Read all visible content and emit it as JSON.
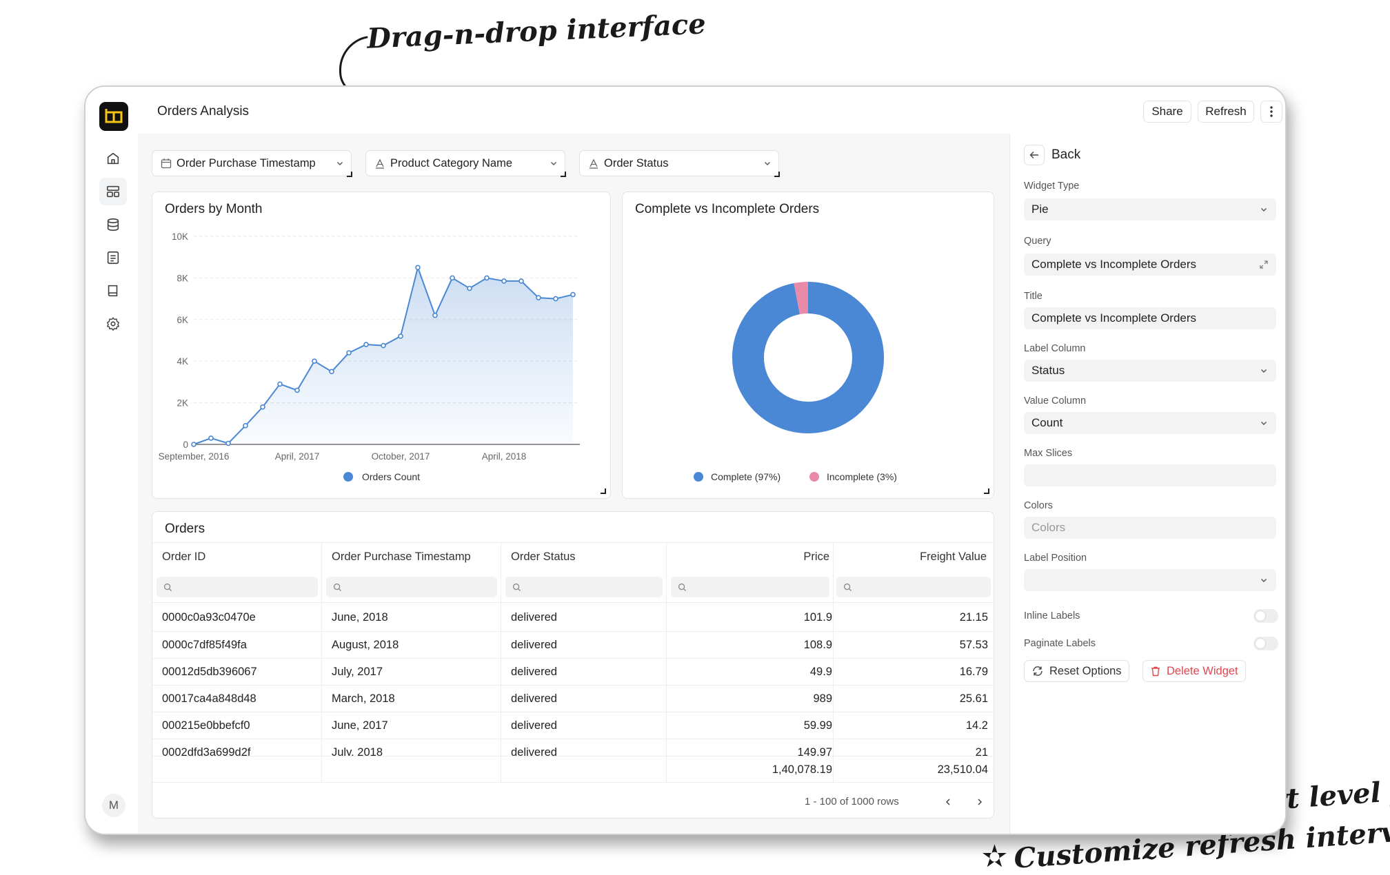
{
  "annotations": {
    "top": "Drag-n-drop interface",
    "bottom1": "Dashboard / Chart level filters",
    "bottom2": "Customize refresh interval"
  },
  "app": {
    "title": "Orders Analysis",
    "user_initial": "M",
    "actions": {
      "share": "Share",
      "refresh": "Refresh"
    }
  },
  "filters": [
    {
      "label": "Order Purchase Timestamp",
      "icon": "calendar-icon"
    },
    {
      "label": "Product Category Name",
      "icon": "text-type-icon"
    },
    {
      "label": "Order Status",
      "icon": "text-type-icon"
    }
  ],
  "line_chart": {
    "title": "Orders by Month",
    "chart_data": {
      "type": "area",
      "title": "Orders by Month",
      "x_tick_labels": [
        "September, 2016",
        "April, 2017",
        "October, 2017",
        "April, 2018"
      ],
      "y_tick_labels": [
        "0",
        "2K",
        "4K",
        "6K",
        "8K",
        "10K"
      ],
      "ylim": [
        0,
        10000
      ],
      "series": [
        {
          "name": "Orders Count",
          "values": [
            0,
            300,
            50,
            900,
            1800,
            2900,
            2600,
            4000,
            3500,
            4400,
            4800,
            4750,
            5200,
            8500,
            6200,
            8000,
            7500,
            8000,
            7850,
            7850,
            7050,
            7000,
            7200
          ]
        }
      ],
      "grid": true,
      "legend": "bottom"
    }
  },
  "pie_chart": {
    "title": "Complete vs Incomplete Orders",
    "chart_data": {
      "type": "pie",
      "title": "Complete vs Incomplete Orders",
      "labels": [
        "Complete (97%)",
        "Incomplete (3%)"
      ],
      "values": [
        97,
        3
      ],
      "donut": true,
      "legend": "bottom"
    }
  },
  "orders_table": {
    "title": "Orders",
    "columns": [
      "Order ID",
      "Order Purchase Timestamp",
      "Order Status",
      "Price",
      "Freight Value"
    ],
    "rows": [
      [
        "0000c0a93c0470e",
        "June, 2018",
        "delivered",
        "101.9",
        "21.15"
      ],
      [
        "0000c7df85f49fa",
        "August, 2018",
        "delivered",
        "108.9",
        "57.53"
      ],
      [
        "00012d5db396067",
        "July, 2017",
        "delivered",
        "49.9",
        "16.79"
      ],
      [
        "00017ca4a848d48",
        "March, 2018",
        "delivered",
        "989",
        "25.61"
      ],
      [
        "000215e0bbefcf0",
        "June, 2017",
        "delivered",
        "59.99",
        "14.2"
      ],
      [
        "0002dfd3a699d2f",
        "July, 2018",
        "delivered",
        "149.97",
        "21"
      ]
    ],
    "totals": {
      "price": "1,40,078.19",
      "freight": "23,510.04"
    },
    "pagination": "1 - 100 of 1000 rows"
  },
  "panel": {
    "back": "Back",
    "widget_type_label": "Widget Type",
    "widget_type_value": "Pie",
    "query_label": "Query",
    "query_value": "Complete vs Incomplete Orders",
    "title_label": "Title",
    "title_value": "Complete vs Incomplete Orders",
    "label_column_label": "Label Column",
    "label_column_value": "Status",
    "value_column_label": "Value Column",
    "value_column_value": "Count",
    "max_slices_label": "Max Slices",
    "colors_label": "Colors",
    "colors_placeholder": "Colors",
    "label_position_label": "Label Position",
    "inline_labels_label": "Inline Labels",
    "paginate_labels_label": "Paginate Labels",
    "reset_button": "Reset Options",
    "delete_button": "Delete Widget"
  },
  "colors": {
    "line": "#4a87d4",
    "complete": "#4a87d4",
    "incomplete": "#e98ba8",
    "danger": "#e0474f"
  }
}
